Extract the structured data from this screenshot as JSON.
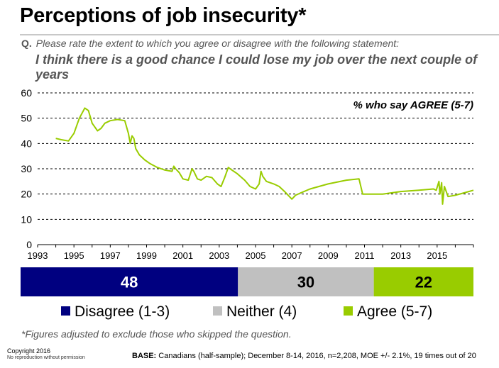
{
  "title": "Perceptions of job insecurity*",
  "question": {
    "prefix": "Q.",
    "text": "Please rate the extent to which you agree or disagree with the following statement:",
    "statement": "I think there is a good chance I could lose my job over the next couple of years"
  },
  "chart_data": {
    "type": "line",
    "annotation": "% who say AGREE (5-7)",
    "xlim": [
      1993,
      2017
    ],
    "ylim": [
      0,
      60
    ],
    "y_ticks": [
      0,
      10,
      20,
      30,
      40,
      50,
      60
    ],
    "x_ticks": [
      1993,
      1995,
      1997,
      1999,
      2001,
      2003,
      2005,
      2007,
      2009,
      2011,
      2013,
      2015
    ],
    "grid": "horizontal dashed",
    "series": [
      {
        "name": "Agree (5-7)",
        "color": "#99cc00",
        "x": [
          1994.0,
          1994.3,
          1994.7,
          1995.0,
          1995.3,
          1995.6,
          1995.8,
          1996.0,
          1996.3,
          1996.5,
          1996.7,
          1997.0,
          1997.4,
          1997.8,
          1998.0,
          1998.1,
          1998.2,
          1998.3,
          1998.4,
          1998.6,
          1998.9,
          1999.2,
          1999.6,
          2000.0,
          2000.4,
          2000.5,
          2000.6,
          2000.8,
          2001.0,
          2001.3,
          2001.5,
          2001.6,
          2001.8,
          2002.0,
          2002.3,
          2002.6,
          2002.9,
          2003.1,
          2003.3,
          2003.5,
          2003.7,
          2004.0,
          2004.4,
          2004.7,
          2005.0,
          2005.2,
          2005.3,
          2005.4,
          2005.6,
          2006.0,
          2006.3,
          2006.6,
          2006.8,
          2007.0,
          2007.2,
          2007.5,
          2008.0,
          2009.0,
          2010.0,
          2010.7,
          2010.9,
          2011.1,
          2012.0,
          2013.0,
          2014.0,
          2014.8,
          2014.95,
          2015.1,
          2015.15,
          2015.25,
          2015.3,
          2015.4,
          2015.6,
          2016.0,
          2016.5,
          2017.0
        ],
        "values": [
          42,
          41.5,
          41,
          44,
          50,
          54,
          53,
          48,
          45,
          46,
          48,
          49,
          49.5,
          49,
          44,
          40,
          43,
          42,
          38,
          35.5,
          33.5,
          32,
          30.5,
          29.5,
          29,
          31,
          30,
          28.5,
          26,
          25.5,
          30,
          29,
          26,
          25.5,
          27,
          26.5,
          24,
          23,
          26.5,
          30.5,
          29.5,
          28,
          25.5,
          23,
          22,
          24,
          29,
          27,
          25,
          24,
          23,
          21,
          19.5,
          18,
          19.5,
          20.5,
          22,
          24,
          25.5,
          26,
          20,
          20,
          20,
          21,
          21.5,
          22,
          21.5,
          25,
          20,
          24.5,
          16,
          23,
          19,
          19.5,
          20.5,
          21.5
        ]
      }
    ],
    "stacked_bar": {
      "segments": [
        {
          "label": "Disagree (1-3)",
          "value": 48,
          "color": "#000080",
          "text_color": "#ffffff"
        },
        {
          "label": "Neither (4)",
          "value": 30,
          "color": "#c0c0c0",
          "text_color": "#000000"
        },
        {
          "label": "Agree (5-7)",
          "value": 22,
          "color": "#99cc00",
          "text_color": "#000000"
        }
      ]
    }
  },
  "footnote": "*Figures adjusted to exclude those who skipped the question.",
  "copyright": {
    "line1": "Copyright 2016",
    "line2": "No reproduction without permission"
  },
  "base": {
    "label": "BASE:",
    "text": "Canadians (half-sample); December 8-14, 2016, n=2,208, MOE +/- 2.1%, 19 times out of 20"
  }
}
